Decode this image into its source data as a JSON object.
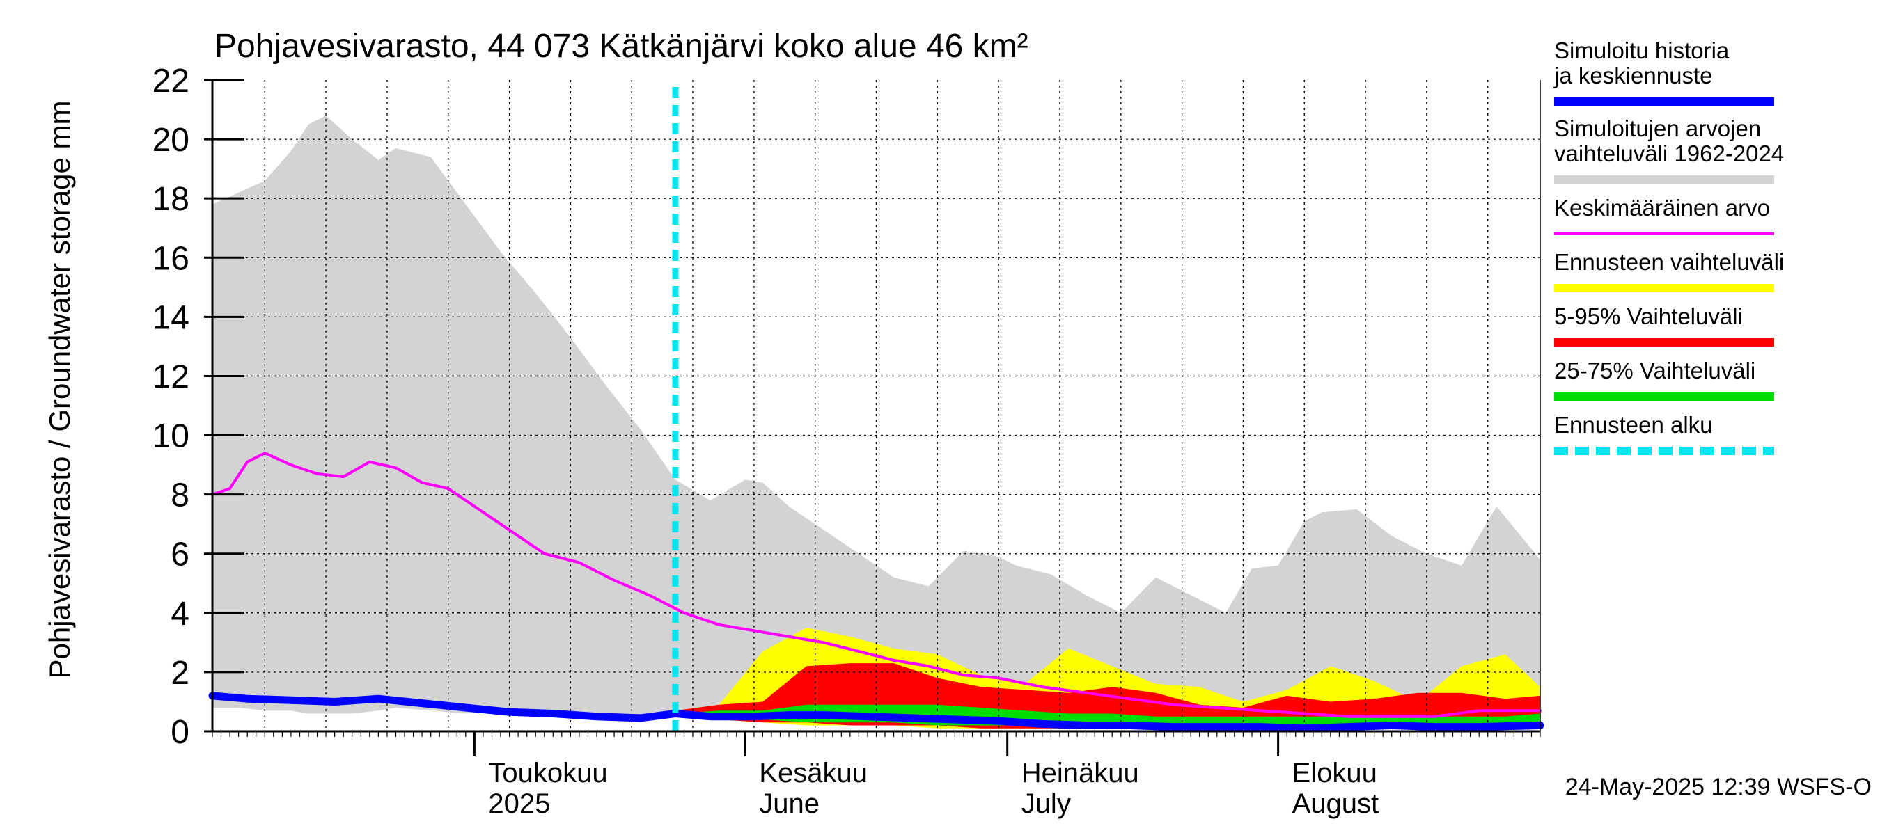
{
  "chart_data": {
    "type": "area",
    "title": "Pohjavesivarasto, 44 073 Kätkänjärvi koko alue 46 km²",
    "ylabel": "Pohjavesivarasto / Groundwater storage   mm",
    "ylim": [
      0,
      22
    ],
    "yticks": [
      "0",
      "2",
      "4",
      "6",
      "8",
      "10",
      "12",
      "14",
      "16",
      "18",
      "20",
      "22"
    ],
    "xlim": [
      "2025-04-01",
      "2025-08-31"
    ],
    "months": [
      {
        "fi": "Toukokuu",
        "en": "2025",
        "date": "2025-05-01"
      },
      {
        "fi": "Kesäkuu",
        "en": "June",
        "date": "2025-06-01"
      },
      {
        "fi": "Heinäkuu",
        "en": "July",
        "date": "2025-07-01"
      },
      {
        "fi": "Elokuu",
        "en": "August",
        "date": "2025-08-01"
      }
    ],
    "grid": true,
    "legend_position": "right",
    "forecast_start": "2025-05-24",
    "footer": "24-May-2025 12:39 WSFS-O",
    "colors": {
      "history_range": "#d3d3d3",
      "forecast_range": "#ffff00",
      "p5_95": "#ff0000",
      "p25_75": "#00dd00",
      "mean": "#ff00ff",
      "simulated": "#0000ff",
      "forecast_start": "#00e5ee"
    },
    "legend": [
      {
        "label": "Simuloitu historia ja keskiennuste",
        "color": "#0000ff",
        "style": "thick"
      },
      {
        "label": "Simuloitujen arvojen vaihteluväli 1962-2024",
        "color": "#d3d3d3",
        "style": "thick"
      },
      {
        "label": "Keskimääräinen arvo",
        "color": "#ff00ff",
        "style": "thin"
      },
      {
        "label": "Ennusteen vaihteluväli",
        "color": "#ffff00",
        "style": "thick"
      },
      {
        "label": "5-95% Vaihteluväli",
        "color": "#ff0000",
        "style": "thick"
      },
      {
        "label": "25-75% Vaihteluväli",
        "color": "#00dd00",
        "style": "thick"
      },
      {
        "label": "Ennusteen alku",
        "color": "#00e5ee",
        "style": "dashed"
      }
    ],
    "history_range": {
      "x": [
        "2025-04-01",
        "2025-04-04",
        "2025-04-07",
        "2025-04-10",
        "2025-04-12",
        "2025-04-14",
        "2025-04-17",
        "2025-04-20",
        "2025-04-22",
        "2025-04-26",
        "2025-04-30",
        "2025-05-04",
        "2025-05-08",
        "2025-05-12",
        "2025-05-16",
        "2025-05-20",
        "2025-05-24",
        "2025-05-28",
        "2025-06-01",
        "2025-06-03",
        "2025-06-06",
        "2025-06-10",
        "2025-06-14",
        "2025-06-18",
        "2025-06-22",
        "2025-06-26",
        "2025-06-30",
        "2025-07-02",
        "2025-07-06",
        "2025-07-10",
        "2025-07-14",
        "2025-07-18",
        "2025-07-22",
        "2025-07-26",
        "2025-07-29",
        "2025-08-01",
        "2025-08-04",
        "2025-08-06",
        "2025-08-10",
        "2025-08-14",
        "2025-08-18",
        "2025-08-22",
        "2025-08-26",
        "2025-08-31"
      ],
      "upper": [
        17.8,
        18.2,
        18.6,
        19.6,
        20.5,
        20.8,
        20.0,
        19.3,
        19.7,
        19.4,
        17.8,
        16.2,
        14.8,
        13.3,
        11.7,
        10.2,
        8.5,
        7.8,
        8.5,
        8.4,
        7.6,
        6.8,
        6.0,
        5.2,
        4.9,
        6.1,
        5.9,
        5.6,
        5.3,
        4.6,
        4.0,
        5.2,
        4.6,
        4.0,
        5.5,
        5.6,
        7.1,
        7.4,
        7.5,
        6.6,
        6.0,
        5.6,
        7.6,
        5.8
      ],
      "lower": [
        0.8,
        0.8,
        0.7,
        0.7,
        0.6,
        0.6,
        0.6,
        0.7,
        0.8,
        0.7,
        0.6,
        0.7,
        0.6,
        0.5,
        0.6,
        0.5,
        0.5,
        0.4,
        0.4,
        0.4,
        0.3,
        0.3,
        0.3,
        0.2,
        0.2,
        0.2,
        0.2,
        0.2,
        0.1,
        0.1,
        0.1,
        0.1,
        0.1,
        0.1,
        0.1,
        0.1,
        0.1,
        0.1,
        0.1,
        0.1,
        0.1,
        0.1,
        0.1,
        0.1
      ]
    },
    "forecast_range": {
      "x": [
        "2025-05-24",
        "2025-05-29",
        "2025-06-03",
        "2025-06-08",
        "2025-06-13",
        "2025-06-18",
        "2025-06-23",
        "2025-06-28",
        "2025-07-03",
        "2025-07-08",
        "2025-07-13",
        "2025-07-18",
        "2025-07-23",
        "2025-07-28",
        "2025-08-02",
        "2025-08-07",
        "2025-08-12",
        "2025-08-17",
        "2025-08-22",
        "2025-08-27",
        "2025-08-31"
      ],
      "upper": [
        0.7,
        0.9,
        2.7,
        3.5,
        3.2,
        2.8,
        2.6,
        1.9,
        1.6,
        2.8,
        2.2,
        1.6,
        1.5,
        1.0,
        1.4,
        2.2,
        1.7,
        1.0,
        2.2,
        2.6,
        1.5
      ],
      "lower": [
        0.5,
        0.4,
        0.3,
        0.2,
        0.2,
        0.2,
        0.1,
        0.1,
        0.1,
        0.1,
        0.1,
        0.1,
        0.1,
        0.1,
        0.1,
        0.1,
        0.1,
        0.1,
        0.1,
        0.1,
        0.1
      ]
    },
    "p5_95": {
      "x": [
        "2025-05-24",
        "2025-05-29",
        "2025-06-03",
        "2025-06-08",
        "2025-06-13",
        "2025-06-18",
        "2025-06-23",
        "2025-06-28",
        "2025-07-03",
        "2025-07-08",
        "2025-07-13",
        "2025-07-18",
        "2025-07-23",
        "2025-07-28",
        "2025-08-02",
        "2025-08-07",
        "2025-08-12",
        "2025-08-17",
        "2025-08-22",
        "2025-08-27",
        "2025-08-31"
      ],
      "upper": [
        0.7,
        0.9,
        1.0,
        2.2,
        2.3,
        2.3,
        1.8,
        1.5,
        1.4,
        1.3,
        1.5,
        1.3,
        0.9,
        0.8,
        1.2,
        1.0,
        1.1,
        1.3,
        1.3,
        1.1,
        1.2
      ],
      "lower": [
        0.5,
        0.4,
        0.3,
        0.3,
        0.2,
        0.2,
        0.2,
        0.1,
        0.1,
        0.1,
        0.1,
        0.1,
        0.1,
        0.1,
        0.1,
        0.1,
        0.1,
        0.1,
        0.1,
        0.1,
        0.1
      ]
    },
    "p25_75": {
      "x": [
        "2025-05-24",
        "2025-05-29",
        "2025-06-03",
        "2025-06-08",
        "2025-06-13",
        "2025-06-18",
        "2025-06-23",
        "2025-06-28",
        "2025-07-03",
        "2025-07-08",
        "2025-07-13",
        "2025-07-18",
        "2025-07-23",
        "2025-07-28",
        "2025-08-02",
        "2025-08-07",
        "2025-08-12",
        "2025-08-17",
        "2025-08-22",
        "2025-08-27",
        "2025-08-31"
      ],
      "upper": [
        0.6,
        0.7,
        0.7,
        0.9,
        0.9,
        0.9,
        0.9,
        0.8,
        0.7,
        0.6,
        0.6,
        0.5,
        0.5,
        0.5,
        0.5,
        0.5,
        0.5,
        0.5,
        0.5,
        0.5,
        0.6
      ],
      "lower": [
        0.5,
        0.5,
        0.4,
        0.3,
        0.3,
        0.3,
        0.2,
        0.2,
        0.2,
        0.2,
        0.2,
        0.2,
        0.2,
        0.2,
        0.2,
        0.2,
        0.2,
        0.2,
        0.2,
        0.3,
        0.3
      ]
    },
    "mean": {
      "x": [
        "2025-04-01",
        "2025-04-03",
        "2025-04-05",
        "2025-04-07",
        "2025-04-10",
        "2025-04-13",
        "2025-04-16",
        "2025-04-19",
        "2025-04-22",
        "2025-04-25",
        "2025-04-28",
        "2025-05-01",
        "2025-05-05",
        "2025-05-09",
        "2025-05-13",
        "2025-05-17",
        "2025-05-21",
        "2025-05-25",
        "2025-05-29",
        "2025-06-02",
        "2025-06-06",
        "2025-06-10",
        "2025-06-14",
        "2025-06-18",
        "2025-06-22",
        "2025-06-26",
        "2025-06-30",
        "2025-07-05",
        "2025-07-10",
        "2025-07-15",
        "2025-07-20",
        "2025-07-25",
        "2025-07-30",
        "2025-08-04",
        "2025-08-09",
        "2025-08-14",
        "2025-08-19",
        "2025-08-24",
        "2025-08-31"
      ],
      "values": [
        8.0,
        8.2,
        9.1,
        9.4,
        9.0,
        8.7,
        8.6,
        9.1,
        8.9,
        8.4,
        8.2,
        7.6,
        6.8,
        6.0,
        5.7,
        5.1,
        4.6,
        4.0,
        3.6,
        3.4,
        3.2,
        3.0,
        2.7,
        2.4,
        2.2,
        1.9,
        1.8,
        1.5,
        1.3,
        1.1,
        0.9,
        0.8,
        0.7,
        0.6,
        0.5,
        0.5,
        0.5,
        0.7,
        0.7
      ]
    },
    "simulated": {
      "x": [
        "2025-04-01",
        "2025-04-05",
        "2025-04-10",
        "2025-04-15",
        "2025-04-20",
        "2025-04-25",
        "2025-04-30",
        "2025-05-05",
        "2025-05-10",
        "2025-05-15",
        "2025-05-20",
        "2025-05-24",
        "2025-05-28",
        "2025-06-02",
        "2025-06-06",
        "2025-06-10",
        "2025-06-15",
        "2025-06-20",
        "2025-06-25",
        "2025-06-30",
        "2025-07-05",
        "2025-07-10",
        "2025-07-15",
        "2025-07-20",
        "2025-07-25",
        "2025-07-30",
        "2025-08-04",
        "2025-08-09",
        "2025-08-14",
        "2025-08-19",
        "2025-08-24",
        "2025-08-31"
      ],
      "values": [
        1.2,
        1.1,
        1.05,
        1.0,
        1.1,
        0.95,
        0.8,
        0.65,
        0.6,
        0.5,
        0.45,
        0.6,
        0.5,
        0.5,
        0.55,
        0.55,
        0.5,
        0.45,
        0.4,
        0.35,
        0.25,
        0.2,
        0.2,
        0.15,
        0.15,
        0.15,
        0.1,
        0.15,
        0.2,
        0.15,
        0.15,
        0.2
      ]
    }
  }
}
